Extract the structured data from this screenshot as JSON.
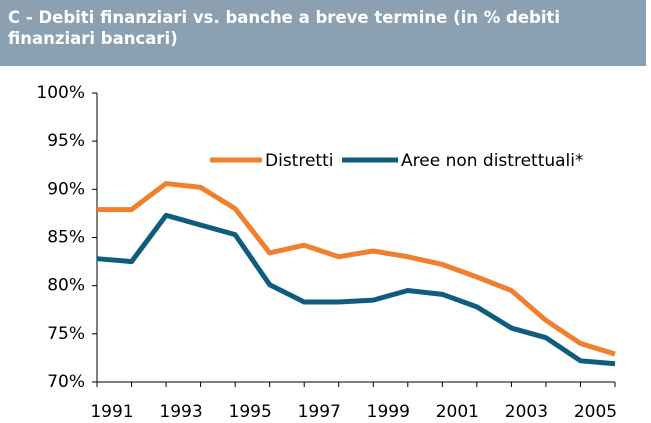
{
  "chart_data": {
    "type": "line",
    "title": "C - Debiti finanziari vs. banche a breve termine  (in % debiti finanziari bancari)",
    "categories": [
      "1991",
      null,
      "1993",
      null,
      "1995",
      null,
      "1997",
      null,
      "1999",
      null,
      "2001",
      null,
      "2003",
      null,
      "2005",
      null
    ],
    "series": [
      {
        "name": "Distretti",
        "color": "#f07f2e",
        "values": [
          87.9,
          87.9,
          90.6,
          90.2,
          88.0,
          83.4,
          84.2,
          83.0,
          83.6,
          83.0,
          82.2,
          80.9,
          79.5,
          76.4,
          74.0,
          72.9
        ]
      },
      {
        "name": "Aree non distrettuali*",
        "color": "#0e5c7e",
        "values": [
          82.8,
          82.5,
          87.3,
          86.3,
          85.3,
          80.1,
          78.3,
          78.3,
          78.5,
          79.5,
          79.1,
          77.8,
          75.6,
          74.6,
          72.2,
          71.9
        ]
      }
    ],
    "ylim": [
      70,
      100
    ],
    "yticks": [
      {
        "value": 70,
        "label": "70%"
      },
      {
        "value": 75,
        "label": "75%"
      },
      {
        "value": 80,
        "label": "80%"
      },
      {
        "value": 85,
        "label": "85%"
      },
      {
        "value": 90,
        "label": "90%"
      },
      {
        "value": 95,
        "label": "95%"
      },
      {
        "value": 100,
        "label": "100%"
      }
    ],
    "grid": false
  }
}
